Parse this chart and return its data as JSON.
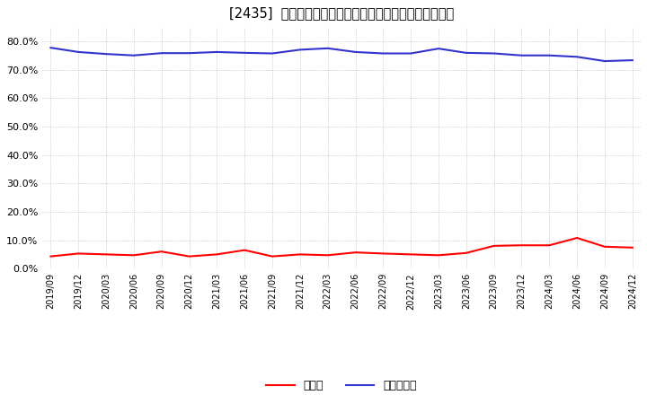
{
  "title": "[2435]  現須金、有利子負債の総資産に対する比率の推移",
  "legend_cash": "現須金",
  "legend_debt": "有利子負債",
  "cash_color": "#ff0000",
  "debt_color": "#3333cc",
  "background_color": "#ffffff",
  "grid_color": "#999999",
  "ylim": [
    0.0,
    0.85
  ],
  "yticks": [
    0.0,
    0.1,
    0.2,
    0.3,
    0.4,
    0.5,
    0.6,
    0.7,
    0.8
  ],
  "dates": [
    "2019/09",
    "2019/12",
    "2020/03",
    "2020/06",
    "2020/09",
    "2020/12",
    "2021/03",
    "2021/06",
    "2021/09",
    "2021/12",
    "2022/03",
    "2022/06",
    "2022/09",
    "2022/12",
    "2023/03",
    "2023/06",
    "2023/09",
    "2023/12",
    "2024/03",
    "2024/06",
    "2024/09",
    "2024/12"
  ],
  "cash_values": [
    0.043,
    0.053,
    0.05,
    0.047,
    0.06,
    0.043,
    0.05,
    0.065,
    0.043,
    0.05,
    0.047,
    0.057,
    0.053,
    0.05,
    0.047,
    0.055,
    0.08,
    0.082,
    0.082,
    0.108,
    0.077,
    0.074
  ],
  "debt_values": [
    0.777,
    0.762,
    0.755,
    0.75,
    0.758,
    0.758,
    0.762,
    0.759,
    0.757,
    0.77,
    0.775,
    0.762,
    0.757,
    0.757,
    0.774,
    0.759,
    0.757,
    0.75,
    0.75,
    0.745,
    0.73,
    0.733
  ]
}
